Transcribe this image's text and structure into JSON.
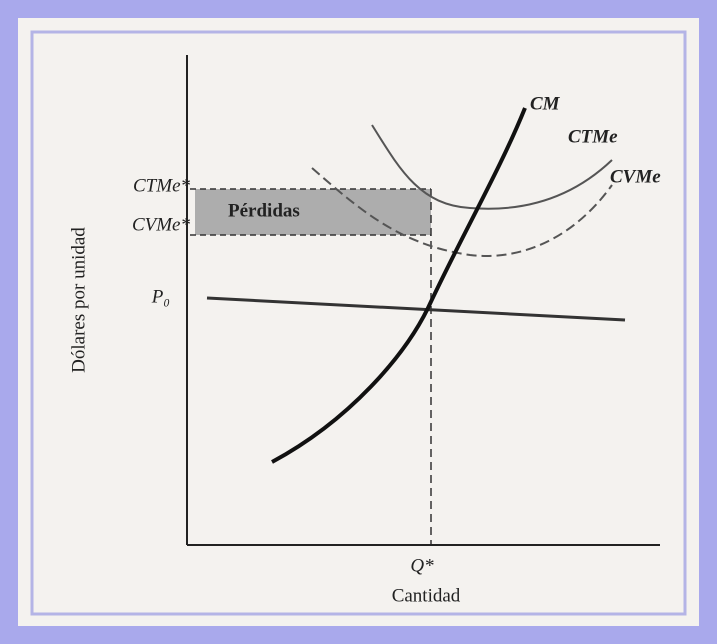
{
  "labels": {
    "cm": "CM",
    "ctme": "CTMe",
    "cvme": "CVMe",
    "ctme_star": "CTMe*",
    "cvme_star": "CVMe*",
    "p0": "P₀",
    "losses": "Pérdidas",
    "q_star": "Q*"
  },
  "axes": {
    "x_label": "Cantidad",
    "y_label": "Dólares por unidad"
  }
}
